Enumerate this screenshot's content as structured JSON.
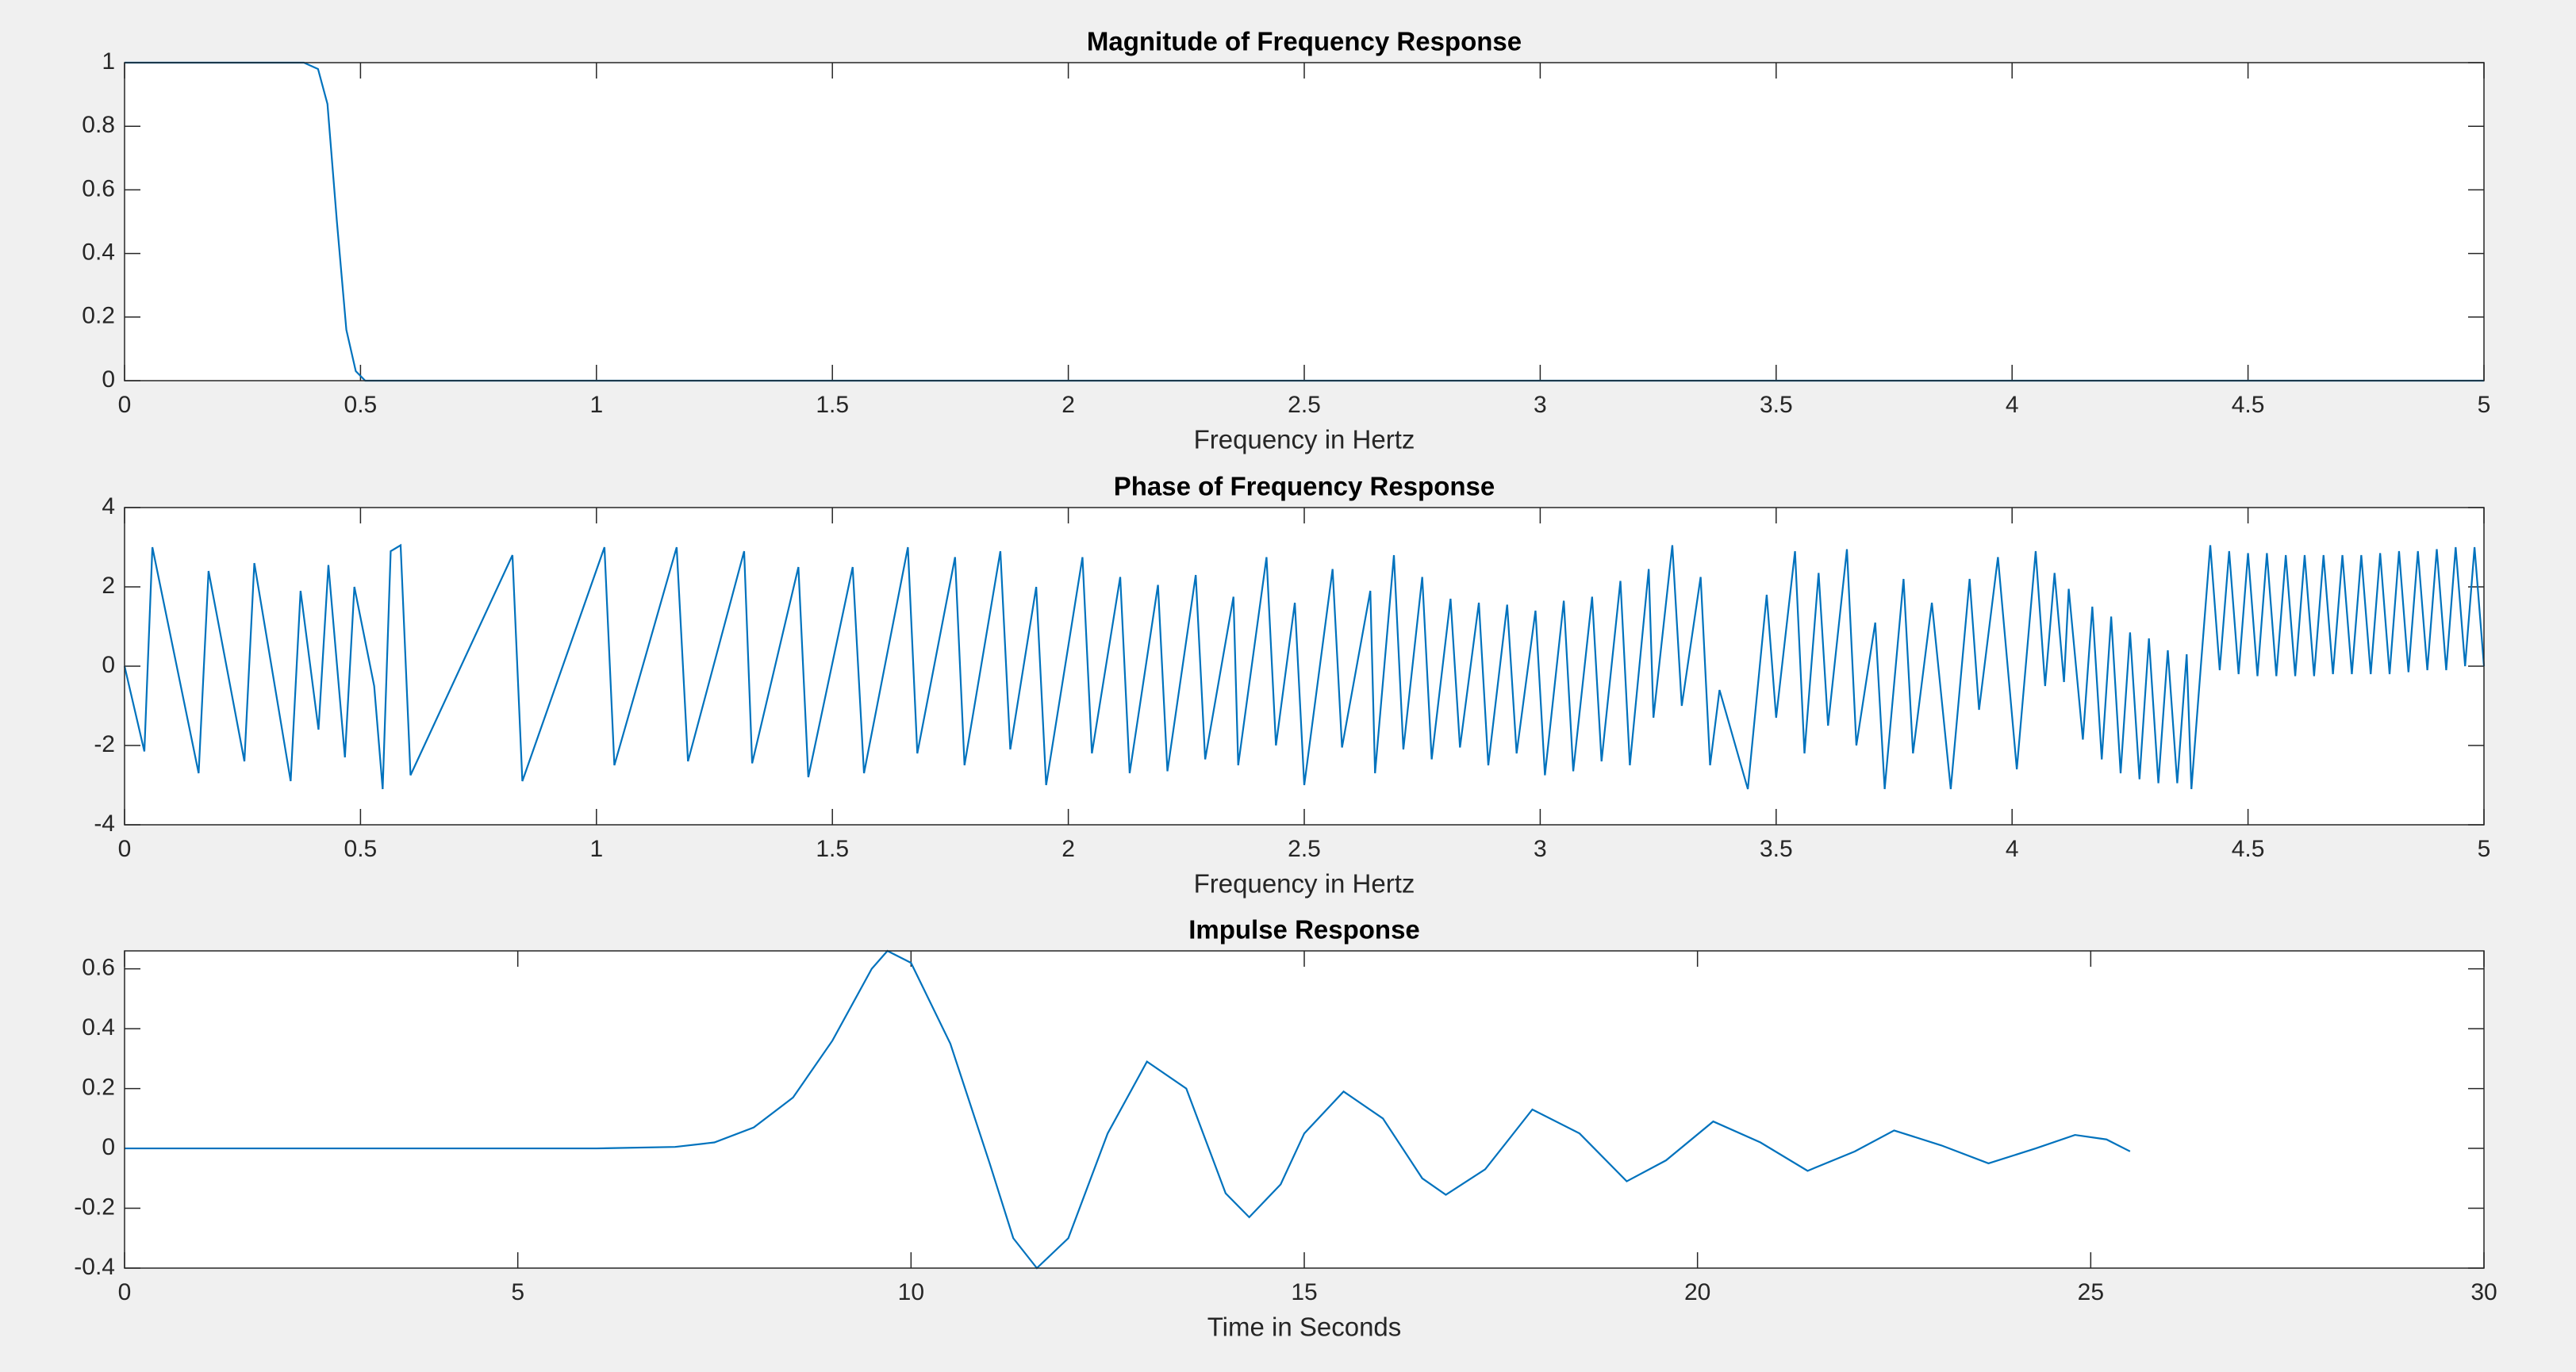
{
  "chart_data": [
    {
      "type": "line",
      "title": "Magnitude of Frequency Response",
      "x_label": "Frequency in Hertz",
      "color": "#0072bd",
      "x": [
        0,
        0.1,
        0.2,
        0.3,
        0.38,
        0.41,
        0.43,
        0.45,
        0.47,
        0.49,
        0.51,
        1,
        2,
        3,
        4,
        5
      ],
      "values": [
        1,
        1,
        1,
        1,
        1,
        0.98,
        0.87,
        0.5,
        0.16,
        0.03,
        0,
        0,
        0,
        0,
        0,
        0
      ],
      "xlim": [
        0,
        5
      ],
      "xticks": [
        0,
        0.5,
        1,
        1.5,
        2,
        2.5,
        3,
        3.5,
        4,
        4.5,
        5
      ],
      "ylim": [
        0,
        1
      ],
      "yticks": [
        0,
        0.2,
        0.4,
        0.6,
        0.8,
        1
      ]
    },
    {
      "type": "line",
      "title": "Phase of Frequency Response",
      "x_label": "Frequency in Hertz",
      "color": "#0072bd",
      "x": [
        0,
        0.042,
        0.059,
        0.157,
        0.178,
        0.254,
        0.275,
        0.352,
        0.373,
        0.411,
        0.432,
        0.467,
        0.487,
        0.529,
        0.547,
        0.564,
        0.585,
        0.606,
        0.822,
        0.843,
        1.017,
        1.038,
        1.17,
        1.194,
        1.313,
        1.33,
        1.428,
        1.449,
        1.543,
        1.567,
        1.66,
        1.68,
        1.76,
        1.78,
        1.856,
        1.877,
        1.932,
        1.953,
        2.03,
        2.05,
        2.11,
        2.13,
        2.19,
        2.21,
        2.27,
        2.29,
        2.35,
        2.36,
        2.42,
        2.44,
        2.48,
        2.5,
        2.56,
        2.58,
        2.64,
        2.65,
        2.69,
        2.71,
        2.75,
        2.77,
        2.81,
        2.83,
        2.87,
        2.89,
        2.93,
        2.95,
        2.99,
        3.01,
        3.05,
        3.07,
        3.11,
        3.13,
        3.17,
        3.19,
        3.23,
        3.24,
        3.28,
        3.3,
        3.34,
        3.36,
        3.38,
        3.44,
        3.48,
        3.5,
        3.54,
        3.56,
        3.59,
        3.61,
        3.65,
        3.67,
        3.71,
        3.73,
        3.77,
        3.79,
        3.83,
        3.87,
        3.91,
        3.93,
        3.97,
        4.01,
        4.05,
        4.07,
        4.09,
        4.11,
        4.12,
        4.15,
        4.17,
        4.19,
        4.21,
        4.23,
        4.25,
        4.27,
        4.29,
        4.31,
        4.33,
        4.35,
        4.37,
        4.38,
        4.4,
        4.42,
        4.44,
        4.46,
        4.48,
        4.5,
        4.52,
        4.54,
        4.56,
        4.58,
        4.6,
        4.62,
        4.64,
        4.66,
        4.68,
        4.7,
        4.72,
        4.74,
        4.76,
        4.78,
        4.8,
        4.82,
        4.84,
        4.86,
        4.88,
        4.9,
        4.92,
        4.94,
        4.96,
        4.98,
        5
      ],
      "values": [
        0,
        -2.15,
        3,
        -2.7,
        2.4,
        -2.4,
        2.6,
        -2.9,
        1.9,
        -1.6,
        2.55,
        -2.3,
        2,
        -0.5,
        -3.1,
        2.9,
        3.05,
        -2.75,
        2.8,
        -2.9,
        3,
        -2.5,
        3,
        -2.4,
        2.9,
        -2.45,
        2.5,
        -2.8,
        2.5,
        -2.7,
        3,
        -2.2,
        2.75,
        -2.5,
        2.9,
        -2.1,
        2,
        -3,
        2.75,
        -2.2,
        2.25,
        -2.7,
        2.05,
        -2.65,
        2.3,
        -2.35,
        1.75,
        -2.5,
        2.75,
        -2,
        1.6,
        -3,
        2.45,
        -2.05,
        1.9,
        -2.7,
        2.8,
        -2.1,
        2.25,
        -2.35,
        1.7,
        -2.05,
        1.6,
        -2.5,
        1.55,
        -2.2,
        1.4,
        -2.75,
        1.65,
        -2.65,
        1.75,
        -2.4,
        2.15,
        -2.5,
        2.45,
        -1.3,
        3.05,
        -1,
        2.25,
        -2.5,
        -0.6,
        -3.1,
        1.8,
        -1.3,
        2.9,
        -2.2,
        2.35,
        -1.5,
        2.95,
        -2,
        1.1,
        -3.1,
        2.2,
        -2.2,
        1.6,
        -3.1,
        2.2,
        -1.1,
        2.75,
        -2.6,
        2.9,
        -0.5,
        2.35,
        -0.4,
        1.95,
        -1.85,
        1.5,
        -2.35,
        1.25,
        -2.7,
        0.85,
        -2.85,
        0.7,
        -2.95,
        0.4,
        -2.95,
        0.3,
        -3.1,
        0,
        3.05,
        -0.1,
        2.9,
        -0.2,
        2.85,
        -0.25,
        2.85,
        -0.25,
        2.8,
        -0.25,
        2.8,
        -0.25,
        2.8,
        -0.2,
        2.8,
        -0.2,
        2.8,
        -0.2,
        2.85,
        -0.2,
        2.9,
        -0.15,
        2.9,
        -0.1,
        2.95,
        -0.1,
        3,
        0,
        3,
        0
      ],
      "xlim": [
        0,
        5
      ],
      "xticks": [
        0,
        0.5,
        1,
        1.5,
        2,
        2.5,
        3,
        3.5,
        4,
        4.5,
        5
      ],
      "ylim": [
        -4,
        4
      ],
      "yticks": [
        -4,
        -2,
        0,
        2,
        4
      ]
    },
    {
      "type": "line",
      "title": "Impulse Response",
      "x_label": "Time in Seconds",
      "color": "#0072bd",
      "x": [
        0,
        6,
        7,
        7.5,
        8,
        8.5,
        9,
        9.5,
        9.7,
        10,
        10.5,
        11,
        11.3,
        11.6,
        12,
        12.5,
        13,
        13.5,
        14,
        14.3,
        14.7,
        15,
        15.5,
        16,
        16.5,
        16.8,
        17.3,
        17.9,
        18.5,
        19.1,
        19.6,
        20.2,
        20.8,
        21.4,
        22,
        22.5,
        23.1,
        23.7,
        24.3,
        24.8,
        25.2,
        25.5
      ],
      "values": [
        0,
        0,
        0.005,
        0.02,
        0.07,
        0.17,
        0.36,
        0.6,
        0.66,
        0.62,
        0.35,
        -0.05,
        -0.3,
        -0.4,
        -0.3,
        0.05,
        0.29,
        0.2,
        -0.15,
        -0.23,
        -0.12,
        0.05,
        0.19,
        0.1,
        -0.1,
        -0.155,
        -0.07,
        0.13,
        0.05,
        -0.11,
        -0.04,
        0.09,
        0.02,
        -0.075,
        -0.01,
        0.06,
        0.01,
        -0.05,
        0,
        0.045,
        0.03,
        -0.01
      ],
      "xlim": [
        0,
        30
      ],
      "xticks": [
        0,
        5,
        10,
        15,
        20,
        25,
        30
      ],
      "ylim": [
        -0.4,
        0.66
      ],
      "yticks": [
        -0.4,
        -0.2,
        0,
        0.2,
        0.4,
        0.6
      ]
    }
  ]
}
